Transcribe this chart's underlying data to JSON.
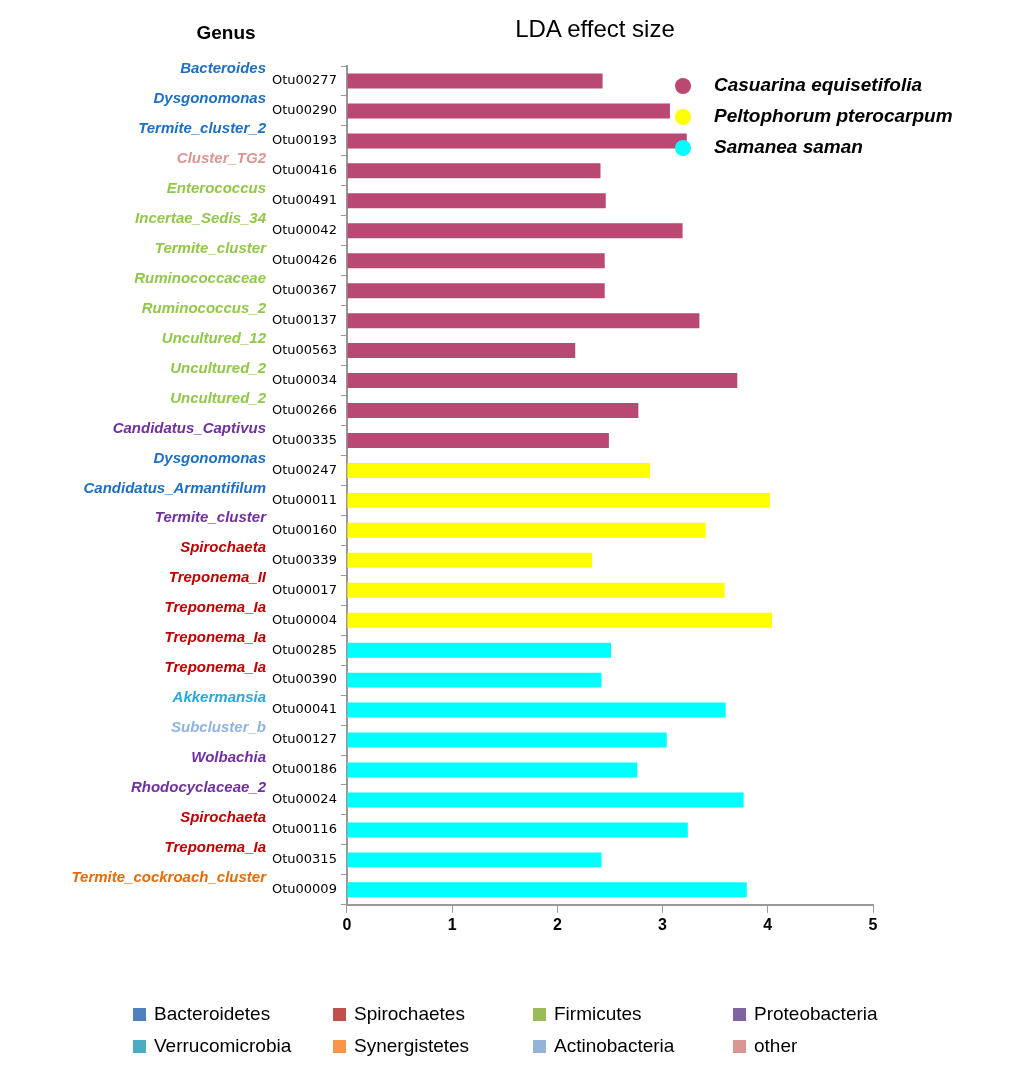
{
  "chart_data": {
    "type": "bar",
    "orientation": "horizontal",
    "title": "LDA effect size",
    "ylabel": "Genus",
    "categories": [
      "Otu00277",
      "Otu00290",
      "Otu00193",
      "Otu00416",
      "Otu00491",
      "Otu00042",
      "Otu00426",
      "Otu00367",
      "Otu00137",
      "Otu00563",
      "Otu00034",
      "Otu00266",
      "Otu00335",
      "Otu00247",
      "Otu00011",
      "Otu00160",
      "Otu00339",
      "Otu00017",
      "Otu00004",
      "Otu00285",
      "Otu00390",
      "Otu00041",
      "Otu00127",
      "Otu00186",
      "Otu00024",
      "Otu00116",
      "Otu00315",
      "Otu00009"
    ],
    "series": [
      {
        "name": "Casuarina equisetifolia",
        "color": "#b94873",
        "values": [
          2.43,
          3.07,
          3.23,
          2.41,
          2.46,
          3.19,
          2.45,
          2.45,
          3.35,
          2.17,
          3.71,
          2.77,
          2.49,
          null,
          null,
          null,
          null,
          null,
          null,
          null,
          null,
          null,
          null,
          null,
          null,
          null,
          null,
          null
        ]
      },
      {
        "name": "Peltophorum pterocarpum",
        "color": "#ffff00",
        "values": [
          null,
          null,
          null,
          null,
          null,
          null,
          null,
          null,
          null,
          null,
          null,
          null,
          null,
          2.88,
          4.02,
          3.41,
          2.33,
          3.59,
          4.04,
          null,
          null,
          null,
          null,
          null,
          null,
          null,
          null,
          null
        ]
      },
      {
        "name": "Samanea saman",
        "color": "#00ffff",
        "values": [
          null,
          null,
          null,
          null,
          null,
          null,
          null,
          null,
          null,
          null,
          null,
          null,
          null,
          null,
          null,
          null,
          null,
          null,
          null,
          2.51,
          2.42,
          3.6,
          3.04,
          2.76,
          3.77,
          3.24,
          2.42,
          3.8
        ]
      }
    ],
    "xlim": [
      0,
      5
    ],
    "xticks": [
      0,
      1,
      2,
      3,
      4,
      5
    ],
    "grid": false,
    "legend": "top right",
    "annotations": [
      "Bacteroides",
      "Dysgonomonas",
      "Termite_cluster_2",
      "Cluster_TG2",
      "Enterococcus",
      "Incertae_Sedis_34",
      "Termite_cluster",
      "Ruminococcaceae",
      "Ruminococcus_2",
      "Uncultured_12",
      "Uncultured_2",
      "Uncultured_2",
      "Candidatus_Captivus",
      "Dysgonomonas",
      "Candidatus_Armantifilum",
      "Termite_cluster",
      "Spirochaeta",
      "Treponema_II",
      "Treponema_Ia",
      "Treponema_Ia",
      "Treponema_Ia",
      "Akkermansia",
      "Subcluster_b",
      "Wolbachia",
      "Rhodocyclaceae_2",
      "Spirochaeta",
      "Treponema_Ia",
      "Termite_cockroach_cluster",
      "Bacteroidetes",
      "Spirochaetes",
      "Firmicutes",
      "Proteobacteria",
      "Verrucomicrobia",
      "Synergistetes",
      "Actinobacteria",
      "other"
    ]
  }
}
